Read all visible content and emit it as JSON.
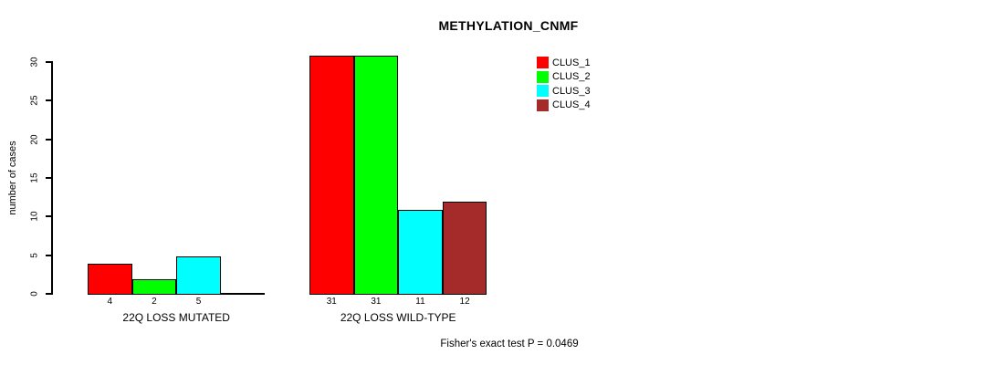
{
  "chart_data": {
    "type": "bar",
    "title": "METHYLATION_CNMF",
    "ylabel": "number of cases",
    "ylim": [
      0,
      30
    ],
    "yticks": [
      0,
      5,
      10,
      15,
      20,
      25,
      30
    ],
    "grid": false,
    "legend_position": "top-right",
    "bar_border_color": "#000000",
    "series": [
      {
        "name": "CLUS_1",
        "color": "#FF0000"
      },
      {
        "name": "CLUS_2",
        "color": "#00FF00"
      },
      {
        "name": "CLUS_3",
        "color": "#00FFFF"
      },
      {
        "name": "CLUS_4",
        "color": "#A52A2A"
      }
    ],
    "groups": [
      {
        "label": "22Q LOSS MUTATED",
        "values": [
          4,
          2,
          5,
          0
        ],
        "bar_labels": [
          "4",
          "2",
          "5",
          ""
        ]
      },
      {
        "label": "22Q LOSS WILD-TYPE",
        "values": [
          31,
          31,
          11,
          12
        ],
        "bar_labels": [
          "31",
          "31",
          "11",
          "12"
        ]
      }
    ],
    "annotation": "Fisher's exact test P = 0.0469"
  }
}
